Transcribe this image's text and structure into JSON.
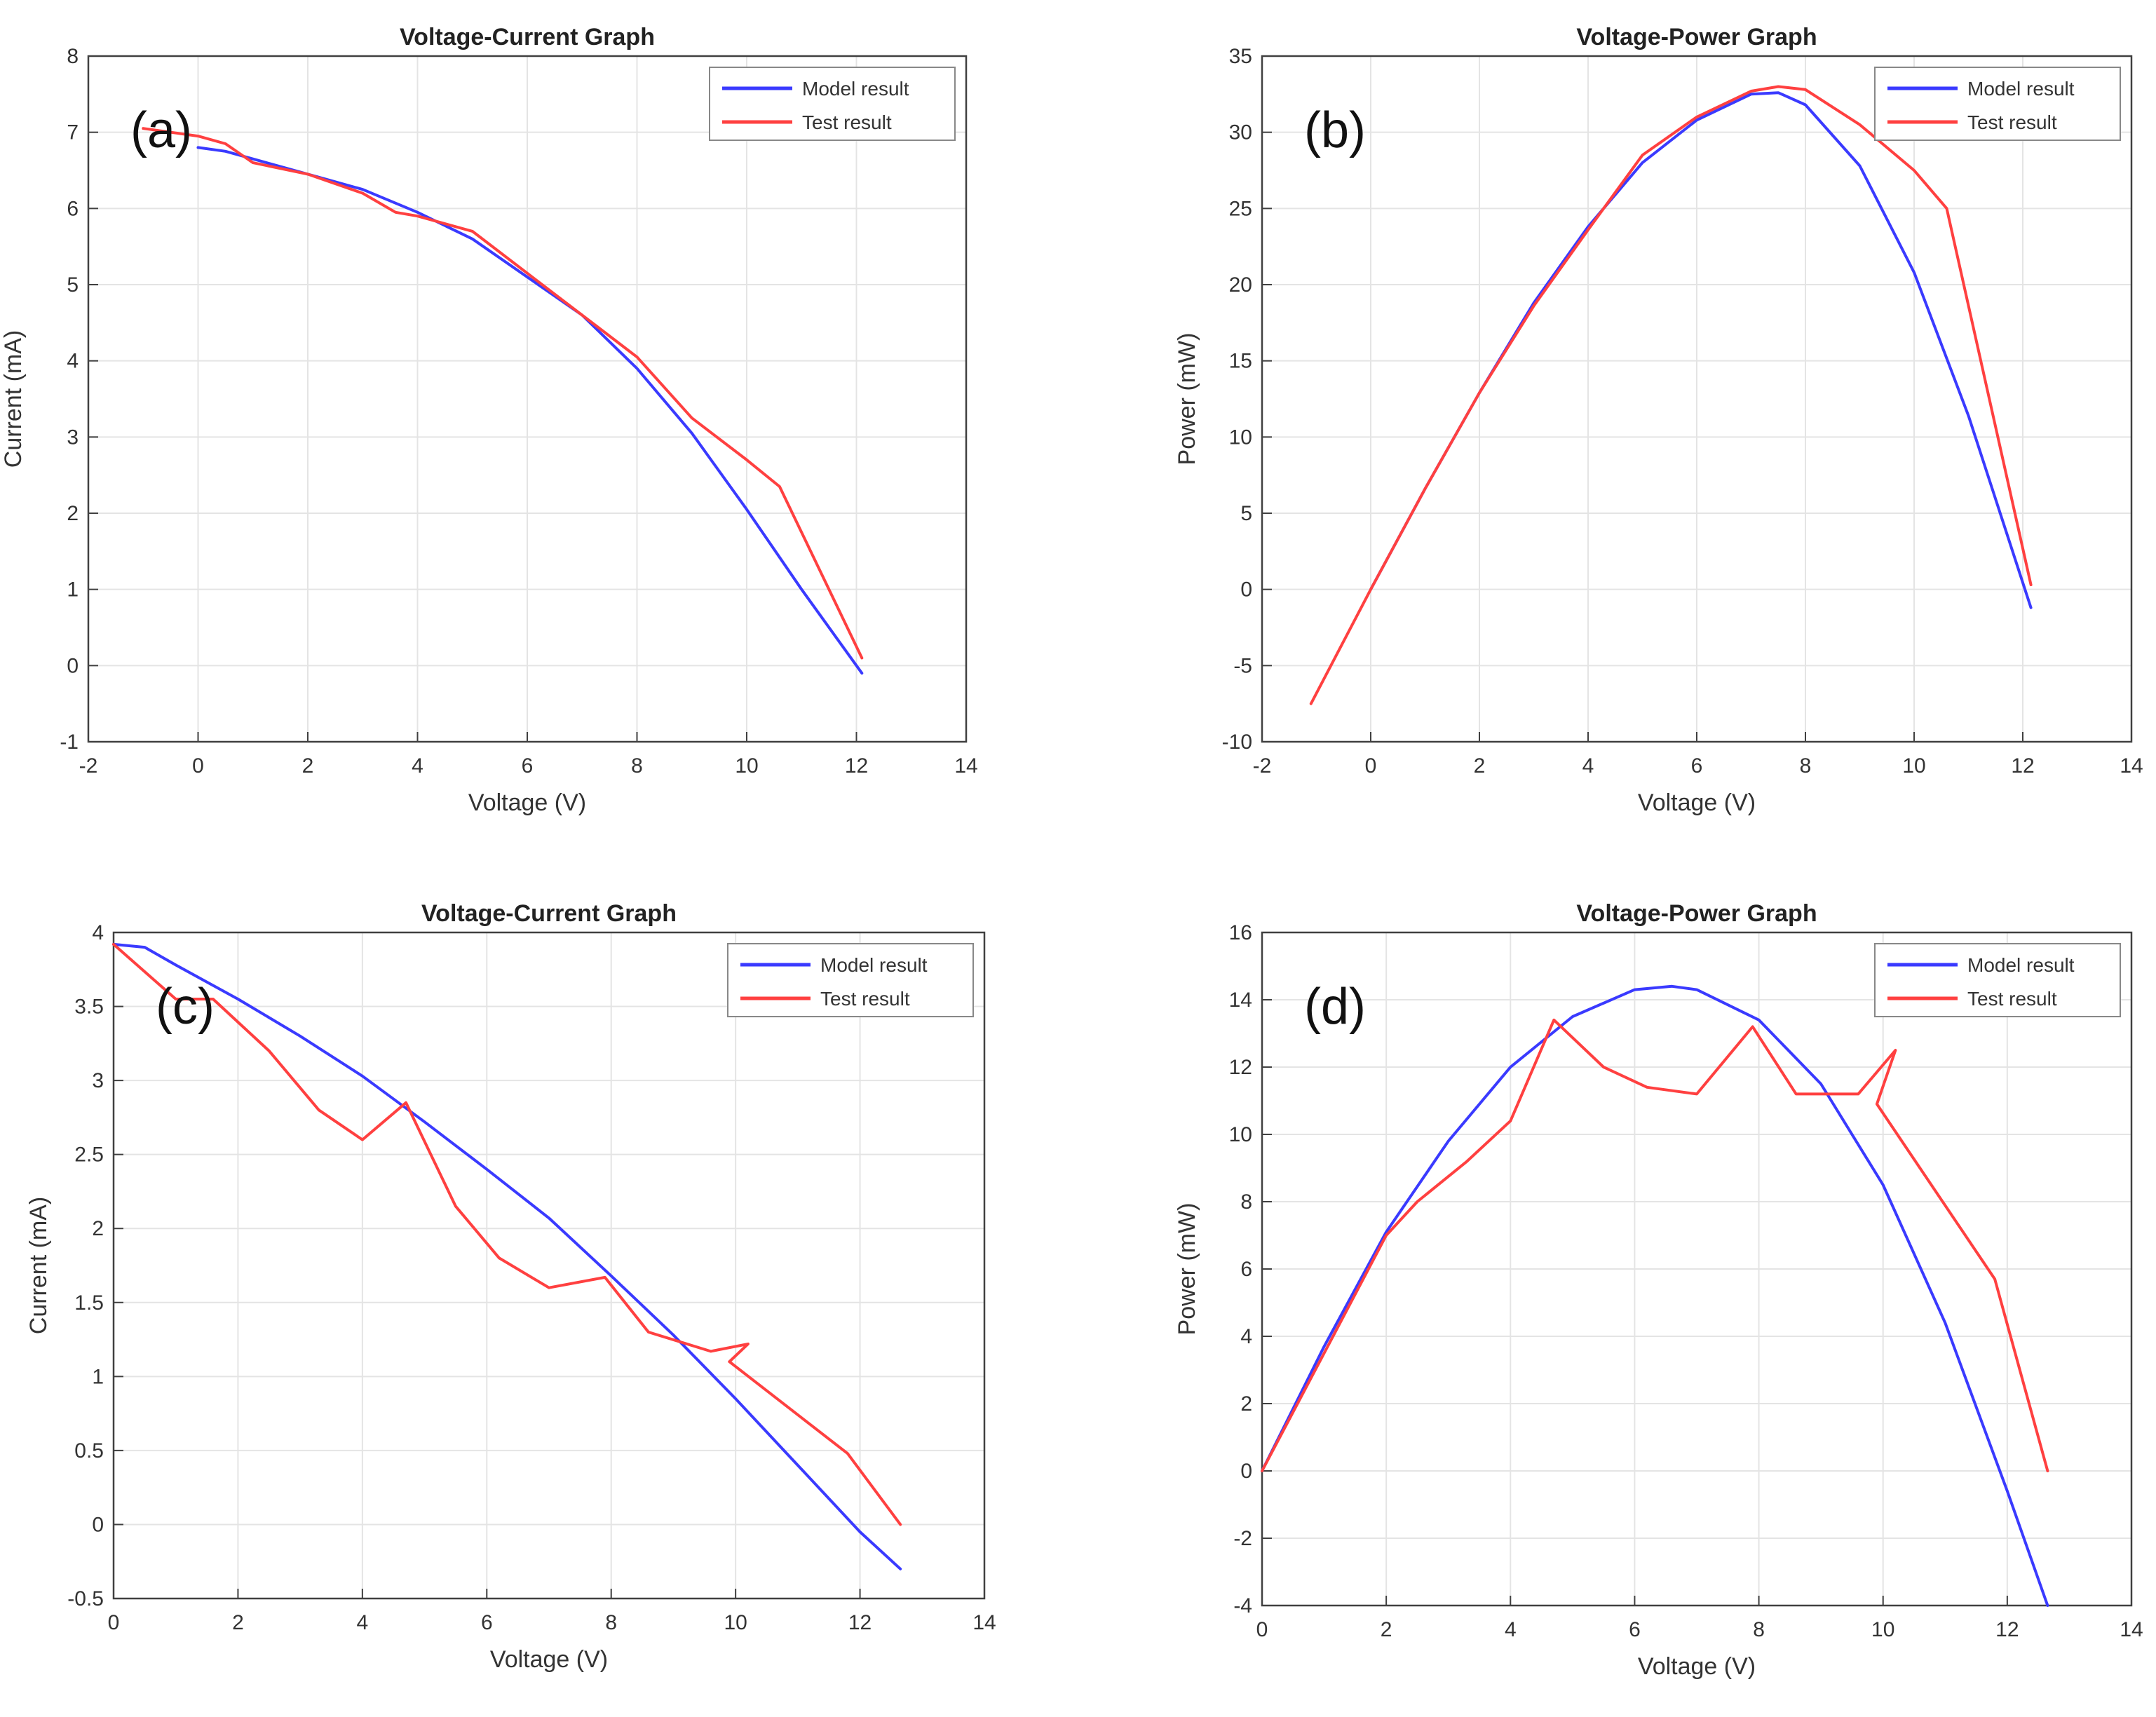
{
  "colors": {
    "model": "#3a3aff",
    "test": "#ff4040",
    "grid": "#e4e4e4",
    "axis": "#404040",
    "text": "#333333"
  },
  "chart_data": [
    {
      "panel": "(a)",
      "type": "line",
      "title": "Voltage-Current Graph",
      "xlabel": "Voltage (V)",
      "ylabel": "Current (mA)",
      "xlim": [
        -2,
        14
      ],
      "ylim": [
        -1,
        8
      ],
      "xticks": [
        -2,
        0,
        2,
        4,
        6,
        8,
        10,
        12,
        14
      ],
      "yticks": [
        -1,
        0,
        1,
        2,
        3,
        4,
        5,
        6,
        7,
        8
      ],
      "grid": true,
      "legend": {
        "position": "top-right",
        "entries": [
          "Model result",
          "Test result"
        ]
      },
      "series": [
        {
          "name": "Model result",
          "color": "#3a3aff",
          "x": [
            0,
            0.5,
            1,
            1.5,
            2,
            3,
            4,
            5,
            6,
            7,
            8,
            9,
            10,
            11,
            12.1
          ],
          "y": [
            6.8,
            6.75,
            6.65,
            6.55,
            6.45,
            6.25,
            5.95,
            5.6,
            5.1,
            4.6,
            3.9,
            3.05,
            2.05,
            1.0,
            -0.1
          ]
        },
        {
          "name": "Test result",
          "color": "#ff4040",
          "x": [
            -1,
            0,
            0.5,
            1,
            2,
            3,
            3.6,
            4,
            5,
            6,
            7,
            8,
            9,
            10,
            10.6,
            12.1
          ],
          "y": [
            7.05,
            6.95,
            6.85,
            6.6,
            6.45,
            6.2,
            5.95,
            5.9,
            5.7,
            5.15,
            4.6,
            4.05,
            3.25,
            2.7,
            2.35,
            0.1
          ]
        }
      ]
    },
    {
      "panel": "(b)",
      "type": "line",
      "title": "Voltage-Power Graph",
      "xlabel": "Voltage (V)",
      "ylabel": "Power (mW)",
      "xlim": [
        -2,
        14
      ],
      "ylim": [
        -10,
        35
      ],
      "xticks": [
        -2,
        0,
        2,
        4,
        6,
        8,
        10,
        12,
        14
      ],
      "yticks": [
        -10,
        -5,
        0,
        5,
        10,
        15,
        20,
        25,
        30,
        35
      ],
      "grid": true,
      "legend": {
        "position": "top-right",
        "entries": [
          "Model result",
          "Test result"
        ]
      },
      "series": [
        {
          "name": "Model result",
          "color": "#3a3aff",
          "x": [
            0,
            1,
            2,
            3,
            4,
            5,
            6,
            7,
            7.5,
            8,
            9,
            10,
            11,
            12.15
          ],
          "y": [
            0,
            6.6,
            12.9,
            18.8,
            23.8,
            28.0,
            30.8,
            32.5,
            32.6,
            31.8,
            27.8,
            20.8,
            11.4,
            -1.2
          ]
        },
        {
          "name": "Test result",
          "color": "#ff4040",
          "x": [
            -1.1,
            0,
            1,
            2,
            3,
            4,
            5,
            6,
            7,
            7.5,
            8,
            9,
            10,
            10.6,
            12.15
          ],
          "y": [
            -7.5,
            0,
            6.6,
            12.9,
            18.6,
            23.6,
            28.5,
            31.0,
            32.7,
            33.0,
            32.8,
            30.5,
            27.5,
            25.0,
            0.3
          ]
        }
      ]
    },
    {
      "panel": "(c)",
      "type": "line",
      "title": "Voltage-Current Graph",
      "xlabel": "Voltage (V)",
      "ylabel": "Current (mA)",
      "xlim": [
        0,
        14
      ],
      "ylim": [
        -0.5,
        4
      ],
      "xticks": [
        0,
        2,
        4,
        6,
        8,
        10,
        12,
        14
      ],
      "yticks": [
        -0.5,
        0,
        0.5,
        1,
        1.5,
        2,
        2.5,
        3,
        3.5,
        4
      ],
      "grid": true,
      "legend": {
        "position": "top-right",
        "entries": [
          "Model result",
          "Test result"
        ]
      },
      "series": [
        {
          "name": "Model result",
          "color": "#3a3aff",
          "x": [
            0,
            0.5,
            1,
            2,
            3,
            4,
            5,
            6,
            7,
            8,
            9,
            10,
            11,
            12,
            12.65
          ],
          "y": [
            3.92,
            3.9,
            3.78,
            3.55,
            3.3,
            3.03,
            2.72,
            2.4,
            2.07,
            1.68,
            1.28,
            0.85,
            0.4,
            -0.05,
            -0.3
          ]
        },
        {
          "name": "Test result",
          "color": "#ff4040",
          "x": [
            0,
            1,
            1.6,
            2.5,
            3.3,
            4,
            4.7,
            5.5,
            6.2,
            7,
            7.9,
            8.6,
            9.6,
            10.2,
            9.9,
            11.8,
            12.65
          ],
          "y": [
            3.92,
            3.55,
            3.55,
            3.2,
            2.8,
            2.6,
            2.85,
            2.15,
            1.8,
            1.6,
            1.67,
            1.3,
            1.17,
            1.22,
            1.1,
            0.48,
            0.0
          ]
        }
      ]
    },
    {
      "panel": "(d)",
      "type": "line",
      "title": "Voltage-Power Graph",
      "xlabel": "Voltage (V)",
      "ylabel": "Power (mW)",
      "xlim": [
        0,
        14
      ],
      "ylim": [
        -4,
        16
      ],
      "xticks": [
        0,
        2,
        4,
        6,
        8,
        10,
        12,
        14
      ],
      "yticks": [
        -4,
        -2,
        0,
        2,
        4,
        6,
        8,
        10,
        12,
        14,
        16
      ],
      "grid": true,
      "legend": {
        "position": "top-right",
        "entries": [
          "Model result",
          "Test result"
        ]
      },
      "series": [
        {
          "name": "Model result",
          "color": "#3a3aff",
          "x": [
            0,
            1,
            2,
            3,
            4,
            5,
            6,
            6.6,
            7,
            8,
            9,
            10,
            11,
            12,
            12.65
          ],
          "y": [
            0,
            3.7,
            7.1,
            9.8,
            12.0,
            13.5,
            14.3,
            14.4,
            14.3,
            13.4,
            11.5,
            8.5,
            4.4,
            -0.6,
            -4.0
          ]
        },
        {
          "name": "Test result",
          "color": "#ff4040",
          "x": [
            0,
            1,
            2,
            2.5,
            3.3,
            4,
            4.7,
            5.5,
            6.2,
            7,
            7.9,
            8.6,
            9.6,
            10.2,
            9.9,
            11.8,
            12.65
          ],
          "y": [
            0,
            3.5,
            7.0,
            8.0,
            9.2,
            10.4,
            13.4,
            12.0,
            11.4,
            11.2,
            13.2,
            11.2,
            11.2,
            12.5,
            10.9,
            5.7,
            0.0
          ]
        }
      ]
    }
  ]
}
